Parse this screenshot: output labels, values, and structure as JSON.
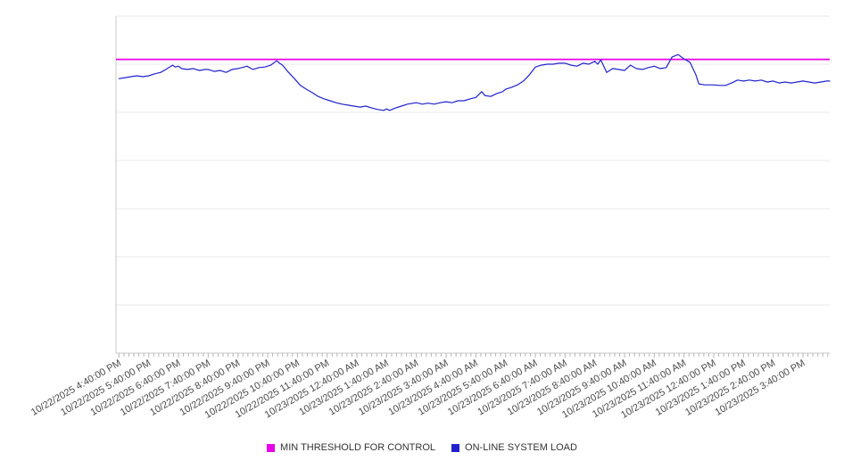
{
  "chart_data": {
    "type": "line",
    "title": "",
    "xlabel": "",
    "ylabel": "",
    "ylim": [
      0,
      7
    ],
    "gridlines": true,
    "grid_rows": 7,
    "minor_tick_minutes": 10,
    "x_tick_labels": [
      "10/22/2025 4:40:00 PM",
      "10/22/2025 5:40:00 PM",
      "10/22/2025 6:40:00 PM",
      "10/22/2025 7:40:00 PM",
      "10/22/2025 8:40:00 PM",
      "10/22/2025 9:40:00 PM",
      "10/22/2025 10:40:00 PM",
      "10/22/2025 11:40:00 PM",
      "10/23/2025 12:40:00 AM",
      "10/23/2025 1:40:00 AM",
      "10/23/2025 2:40:00 AM",
      "10/23/2025 3:40:00 AM",
      "10/23/2025 4:40:00 AM",
      "10/23/2025 5:40:00 AM",
      "10/23/2025 6:40:00 AM",
      "10/23/2025 7:40:00 AM",
      "10/23/2025 8:40:00 AM",
      "10/23/2025 9:40:00 AM",
      "10/23/2025 10:40:00 AM",
      "10/23/2025 11:40:00 AM",
      "10/23/2025 12:40:00 PM",
      "10/23/2025 1:40:00 PM",
      "10/23/2025 2:40:00 PM",
      "10/23/2025 3:40:00 PM"
    ],
    "series": [
      {
        "name": "MIN THRESHOLD FOR CONTROL",
        "color": "#e800e8",
        "kind": "constant",
        "value": 6.1
      },
      {
        "name": "ON-LINE SYSTEM LOAD",
        "color": "#2222cc",
        "kind": "points",
        "points": [
          [
            0.0,
            5.7
          ],
          [
            0.2,
            5.72
          ],
          [
            0.4,
            5.74
          ],
          [
            0.6,
            5.76
          ],
          [
            0.8,
            5.74
          ],
          [
            1.0,
            5.76
          ],
          [
            1.2,
            5.8
          ],
          [
            1.4,
            5.83
          ],
          [
            1.6,
            5.9
          ],
          [
            1.8,
            5.98
          ],
          [
            1.9,
            5.94
          ],
          [
            2.0,
            5.96
          ],
          [
            2.1,
            5.91
          ],
          [
            2.3,
            5.89
          ],
          [
            2.5,
            5.91
          ],
          [
            2.7,
            5.87
          ],
          [
            2.9,
            5.89
          ],
          [
            3.0,
            5.89
          ],
          [
            3.2,
            5.85
          ],
          [
            3.4,
            5.87
          ],
          [
            3.6,
            5.83
          ],
          [
            3.8,
            5.89
          ],
          [
            4.0,
            5.91
          ],
          [
            4.2,
            5.94
          ],
          [
            4.3,
            5.96
          ],
          [
            4.5,
            5.89
          ],
          [
            4.7,
            5.93
          ],
          [
            4.9,
            5.94
          ],
          [
            5.1,
            5.98
          ],
          [
            5.3,
            6.07
          ],
          [
            5.4,
            6.02
          ],
          [
            5.5,
            5.98
          ],
          [
            5.7,
            5.83
          ],
          [
            5.9,
            5.7
          ],
          [
            6.1,
            5.56
          ],
          [
            6.3,
            5.48
          ],
          [
            6.5,
            5.41
          ],
          [
            6.7,
            5.33
          ],
          [
            6.9,
            5.28
          ],
          [
            7.1,
            5.24
          ],
          [
            7.3,
            5.2
          ],
          [
            7.5,
            5.17
          ],
          [
            7.7,
            5.15
          ],
          [
            7.9,
            5.13
          ],
          [
            8.1,
            5.11
          ],
          [
            8.3,
            5.13
          ],
          [
            8.5,
            5.09
          ],
          [
            8.7,
            5.06
          ],
          [
            8.9,
            5.04
          ],
          [
            9.0,
            5.07
          ],
          [
            9.1,
            5.04
          ],
          [
            9.3,
            5.09
          ],
          [
            9.5,
            5.13
          ],
          [
            9.7,
            5.17
          ],
          [
            9.9,
            5.19
          ],
          [
            10.0,
            5.2
          ],
          [
            10.2,
            5.17
          ],
          [
            10.4,
            5.19
          ],
          [
            10.6,
            5.17
          ],
          [
            10.8,
            5.2
          ],
          [
            11.0,
            5.22
          ],
          [
            11.2,
            5.2
          ],
          [
            11.4,
            5.24
          ],
          [
            11.6,
            5.24
          ],
          [
            11.8,
            5.28
          ],
          [
            12.0,
            5.31
          ],
          [
            12.2,
            5.43
          ],
          [
            12.3,
            5.35
          ],
          [
            12.5,
            5.33
          ],
          [
            12.7,
            5.39
          ],
          [
            12.9,
            5.43
          ],
          [
            13.0,
            5.48
          ],
          [
            13.2,
            5.52
          ],
          [
            13.4,
            5.57
          ],
          [
            13.6,
            5.65
          ],
          [
            13.8,
            5.78
          ],
          [
            14.0,
            5.94
          ],
          [
            14.2,
            5.98
          ],
          [
            14.4,
            6.0
          ],
          [
            14.6,
            6.0
          ],
          [
            14.8,
            6.02
          ],
          [
            15.0,
            6.02
          ],
          [
            15.2,
            5.98
          ],
          [
            15.4,
            5.96
          ],
          [
            15.6,
            6.02
          ],
          [
            15.8,
            6.0
          ],
          [
            16.0,
            6.06
          ],
          [
            16.1,
            6.0
          ],
          [
            16.2,
            6.09
          ],
          [
            16.4,
            5.83
          ],
          [
            16.6,
            5.91
          ],
          [
            16.8,
            5.89
          ],
          [
            17.0,
            5.87
          ],
          [
            17.2,
            5.98
          ],
          [
            17.4,
            5.91
          ],
          [
            17.6,
            5.89
          ],
          [
            17.8,
            5.93
          ],
          [
            18.0,
            5.96
          ],
          [
            18.2,
            5.91
          ],
          [
            18.4,
            5.93
          ],
          [
            18.6,
            6.15
          ],
          [
            18.8,
            6.2
          ],
          [
            19.0,
            6.11
          ],
          [
            19.2,
            6.04
          ],
          [
            19.4,
            5.78
          ],
          [
            19.5,
            5.59
          ],
          [
            19.7,
            5.57
          ],
          [
            20.0,
            5.57
          ],
          [
            20.2,
            5.56
          ],
          [
            20.4,
            5.56
          ],
          [
            20.6,
            5.61
          ],
          [
            20.8,
            5.67
          ],
          [
            21.0,
            5.65
          ],
          [
            21.2,
            5.67
          ],
          [
            21.4,
            5.65
          ],
          [
            21.6,
            5.67
          ],
          [
            21.8,
            5.63
          ],
          [
            22.0,
            5.65
          ],
          [
            22.2,
            5.61
          ],
          [
            22.4,
            5.63
          ],
          [
            22.6,
            5.61
          ],
          [
            22.8,
            5.63
          ],
          [
            23.0,
            5.65
          ],
          [
            23.2,
            5.63
          ],
          [
            23.4,
            5.61
          ],
          [
            23.6,
            5.63
          ],
          [
            23.8,
            5.65
          ],
          [
            23.9,
            5.65
          ]
        ]
      }
    ],
    "legend": [
      {
        "label": "MIN THRESHOLD FOR CONTROL",
        "color": "#e800e8"
      },
      {
        "label": "ON-LINE SYSTEM LOAD",
        "color": "#2222cc"
      }
    ],
    "legend_position": "bottom-center",
    "colors": {
      "grid": "#e9e9e9",
      "axis": "#c8c8c8",
      "tick": "#b5b5b5",
      "label": "#4a4a4a"
    }
  }
}
